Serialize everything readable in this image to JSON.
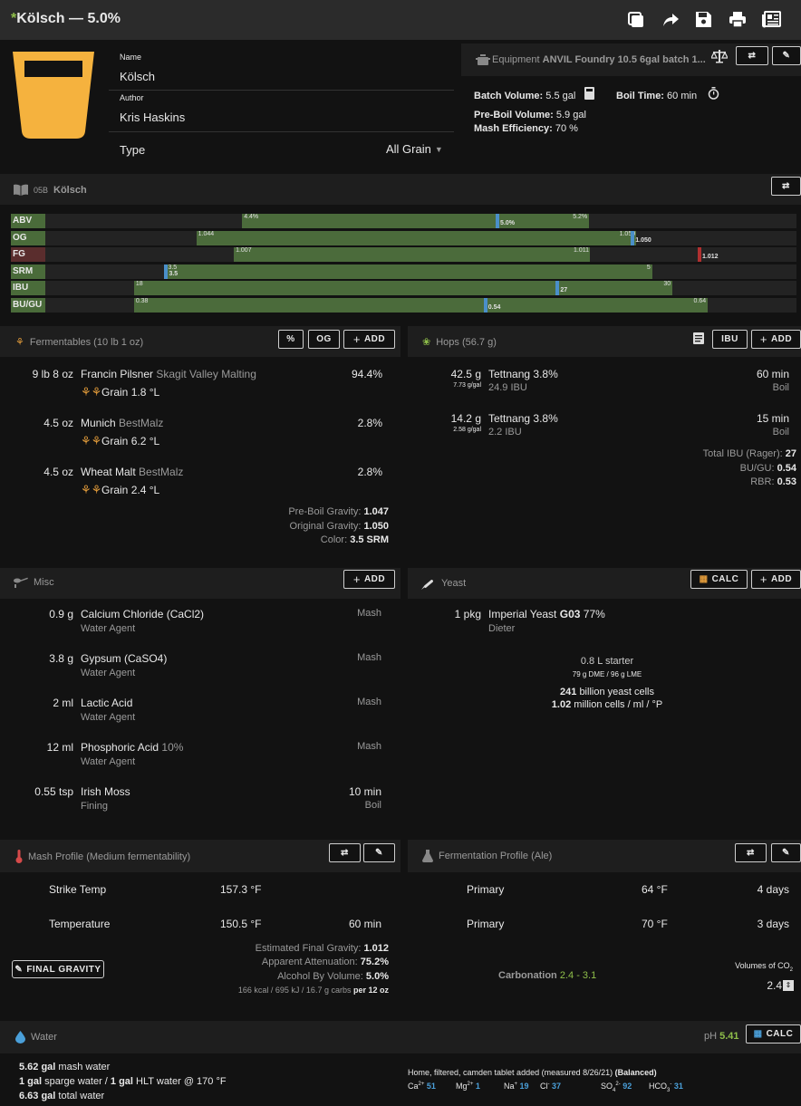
{
  "header": {
    "modified_mark": "*",
    "title": "Kölsch — 5.0%"
  },
  "recipe": {
    "name_label": "Name",
    "name": "Kölsch",
    "author_label": "Author",
    "author": "Kris Haskins",
    "type_label": "Type",
    "type_value": "All Grain",
    "beer_color": "#f5b23e"
  },
  "equipment": {
    "label": "Equipment",
    "name": "ANVIL Foundry 10.5 6gal batch 1...",
    "batch_volume_label": "Batch Volume:",
    "batch_volume": "5.5 gal",
    "boil_time_label": "Boil Time:",
    "boil_time": "60 min",
    "pre_boil_label": "Pre-Boil Volume:",
    "pre_boil": "5.9 gal",
    "mash_eff_label": "Mash Efficiency:",
    "mash_eff": "70 %"
  },
  "style": {
    "code": "05B",
    "name": "Kölsch"
  },
  "style_bars": [
    {
      "label": "ABV",
      "min": "4.4%",
      "max": "5.2%",
      "value": "5.0%",
      "label_color": "#4a6b3a",
      "marker_color": "#4a8fc9",
      "fill_start": 0.262,
      "fill_end": 0.724,
      "marker": 0.602
    },
    {
      "label": "OG",
      "min": "1.044",
      "max": "1.050",
      "value": "1.050",
      "label_color": "#4a6b3a",
      "marker_color": "#4a8fc9",
      "fill_start": 0.201,
      "fill_end": 0.786,
      "marker": 0.782
    },
    {
      "label": "FG",
      "min": "1.007",
      "max": "1.011",
      "value": "1.012",
      "label_color": "#5a2d2d",
      "marker_color": "#b03030",
      "fill_start": 0.251,
      "fill_end": 0.725,
      "marker": 0.871
    },
    {
      "label": "SRM",
      "min": "3.5",
      "max": "5",
      "value": "3.5",
      "label_color": "#4a6b3a",
      "marker_color": "#4a8fc9",
      "fill_start": 0.161,
      "fill_end": 0.808,
      "marker": 0.161
    },
    {
      "label": "IBU",
      "min": "18",
      "max": "30",
      "value": "27",
      "label_color": "#4a6b3a",
      "marker_color": "#4a8fc9",
      "fill_start": 0.118,
      "fill_end": 0.835,
      "marker": 0.682
    },
    {
      "label": "BU/GU",
      "min": "0.38",
      "max": "0.64",
      "value": "0.54",
      "label_color": "#4a6b3a",
      "marker_color": "#4a8fc9",
      "fill_start": 0.118,
      "fill_end": 0.882,
      "marker": 0.586
    }
  ],
  "fermentables": {
    "title": "Fermentables (10 lb 1 oz)",
    "btn_pct": "%",
    "btn_og": "OG",
    "btn_add": "ADD",
    "items": [
      {
        "amount": "9 lb 8 oz",
        "name": "Francin Pilsner",
        "supplier": "Skagit Valley Malting",
        "pct": "94.4%",
        "kind": "Grain",
        "color": "1.8 °L"
      },
      {
        "amount": "4.5 oz",
        "name": "Munich",
        "supplier": "BestMalz",
        "pct": "2.8%",
        "kind": "Grain",
        "color": "6.2 °L"
      },
      {
        "amount": "4.5 oz",
        "name": "Wheat Malt",
        "supplier": "BestMalz",
        "pct": "2.8%",
        "kind": "Grain",
        "color": "2.4 °L"
      }
    ],
    "pre_boil_gravity_label": "Pre-Boil Gravity:",
    "pre_boil_gravity": "1.047",
    "og_label": "Original Gravity:",
    "og": "1.050",
    "color_label": "Color:",
    "color": "3.5 SRM"
  },
  "hops": {
    "title": "Hops (56.7 g)",
    "btn_ibu": "IBU",
    "btn_add": "ADD",
    "items": [
      {
        "amount": "42.5 g",
        "per_gal": "7.73 g/gal",
        "name": "Tettnang",
        "alpha": "3.8%",
        "ibu": "24.9 IBU",
        "time": "60 min",
        "use": "Boil"
      },
      {
        "amount": "14.2 g",
        "per_gal": "2.58 g/gal",
        "name": "Tettnang",
        "alpha": "3.8%",
        "ibu": "2.2 IBU",
        "time": "15 min",
        "use": "Boil"
      }
    ],
    "total_ibu_label": "Total IBU (Rager):",
    "total_ibu": "27",
    "bugu_label": "BU/GU:",
    "bugu": "0.54",
    "rbr_label": "RBR:",
    "rbr": "0.53"
  },
  "misc": {
    "title": "Misc",
    "btn_add": "ADD",
    "items": [
      {
        "amount": "0.9 g",
        "name": "Calcium Chloride (CaCl2)",
        "extra": "",
        "type": "Water Agent",
        "use": "Mash",
        "time": ""
      },
      {
        "amount": "3.8 g",
        "name": "Gypsum (CaSO4)",
        "extra": "",
        "type": "Water Agent",
        "use": "Mash",
        "time": ""
      },
      {
        "amount": "2 ml",
        "name": "Lactic Acid",
        "extra": "",
        "type": "Water Agent",
        "use": "Mash",
        "time": ""
      },
      {
        "amount": "12 ml",
        "name": "Phosphoric Acid",
        "extra": "10%",
        "type": "Water Agent",
        "use": "Mash",
        "time": ""
      },
      {
        "amount": "0.55 tsp",
        "name": "Irish Moss",
        "extra": "",
        "type": "Fining",
        "use": "Boil",
        "time": "10 min"
      }
    ]
  },
  "yeast": {
    "title": "Yeast",
    "btn_calc": "CALC",
    "btn_add": "ADD",
    "amount": "1 pkg",
    "name": "Imperial Yeast",
    "code": "G03",
    "attenuation": "77%",
    "strain": "Dieter",
    "starter": "0.8 L starter",
    "dme": "79 g DME / 96 g LME",
    "cells_value": "241",
    "cells_label": "billion yeast cells",
    "rate_value": "1.02",
    "rate_label": "million cells / ml / °P"
  },
  "mash": {
    "title": "Mash Profile (Medium fermentability)",
    "steps": [
      {
        "name": "Strike Temp",
        "temp": "157.3 °F",
        "time": ""
      },
      {
        "name": "Temperature",
        "temp": "150.5 °F",
        "time": "60 min"
      }
    ],
    "btn_final_gravity": "FINAL GRAVITY",
    "est_fg_label": "Estimated Final Gravity:",
    "est_fg": "1.012",
    "att_label": "Apparent Attenuation:",
    "att": "75.2%",
    "abv_label": "Alcohol By Volume:",
    "abv": "5.0%",
    "calories": "166 kcal / 695 kJ / 16.7 g carbs",
    "calories_per": "per 12 oz"
  },
  "fermentation": {
    "title": "Fermentation Profile (Ale)",
    "steps": [
      {
        "name": "Primary",
        "temp": "64 °F",
        "time": "4 days"
      },
      {
        "name": "Primary",
        "temp": "70 °F",
        "time": "3 days"
      }
    ],
    "carbonation_label": "Carbonation",
    "carbonation_range": "2.4 - 3.1",
    "volumes_label": "Volumes of CO",
    "volumes_sub": "2",
    "volumes_value": "2.4"
  },
  "water": {
    "title": "Water",
    "ph_label": "pH",
    "ph": "5.41",
    "btn_calc": "CALC",
    "mash_water_value": "5.62 gal",
    "mash_water_label": "mash water",
    "sparge_value": "1 gal",
    "sparge_label": "sparge water /",
    "hlt_value": "1 gal",
    "hlt_label": "HLT water @ 170 °F",
    "total_value": "6.63 gal",
    "total_label": "total water",
    "profile_name": "Home, filtered, camden tablet added (measured 8/26/21)",
    "profile_balance": "(Balanced)",
    "ions": [
      {
        "base": "Ca",
        "sup": "2+",
        "sub": "",
        "value": "51"
      },
      {
        "base": "Mg",
        "sup": "2+",
        "sub": "",
        "value": "1"
      },
      {
        "base": "Na",
        "sup": "+",
        "sub": "",
        "value": "19"
      },
      {
        "base": "Cl",
        "sup": "-",
        "sub": "",
        "value": "37"
      },
      {
        "base": "SO",
        "sup": "2-",
        "sub": "4",
        "value": "92"
      },
      {
        "base": "HCO",
        "sup": "-",
        "sub": "3",
        "value": "31"
      }
    ]
  }
}
